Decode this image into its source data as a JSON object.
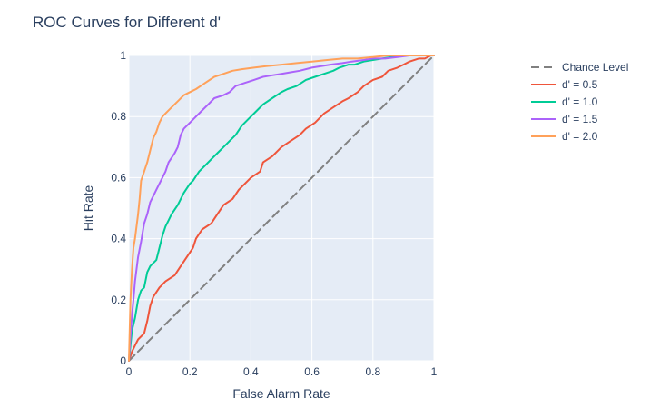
{
  "chart_data": {
    "type": "line",
    "title": "ROC Curves for Different d'",
    "xlabel": "False Alarm Rate",
    "ylabel": "Hit Rate",
    "xlim": [
      0,
      1
    ],
    "ylim": [
      0,
      1
    ],
    "x_ticks": [
      "0",
      "0.2",
      "0.4",
      "0.6",
      "0.8",
      "1"
    ],
    "y_ticks": [
      "0",
      "0.2",
      "0.4",
      "0.6",
      "0.8",
      "1"
    ],
    "grid": true,
    "legend_position": "top-right",
    "series": [
      {
        "name": "Chance Level",
        "color": "#808080",
        "dash": "dash",
        "x": [
          0,
          1
        ],
        "y": [
          0,
          1
        ]
      },
      {
        "name": "d' = 0.5",
        "color": "#EF553B",
        "x": [
          0,
          0.01,
          0.02,
          0.03,
          0.05,
          0.06,
          0.07,
          0.08,
          0.1,
          0.12,
          0.15,
          0.17,
          0.19,
          0.21,
          0.22,
          0.24,
          0.27,
          0.29,
          0.31,
          0.34,
          0.36,
          0.4,
          0.43,
          0.44,
          0.47,
          0.5,
          0.53,
          0.56,
          0.58,
          0.61,
          0.64,
          0.67,
          0.7,
          0.72,
          0.75,
          0.77,
          0.8,
          0.83,
          0.85,
          0.88,
          0.9,
          0.92,
          0.95,
          0.97,
          0.99,
          1.0
        ],
        "y": [
          0,
          0.03,
          0.05,
          0.07,
          0.09,
          0.13,
          0.18,
          0.21,
          0.24,
          0.26,
          0.28,
          0.31,
          0.34,
          0.37,
          0.4,
          0.43,
          0.45,
          0.48,
          0.51,
          0.53,
          0.56,
          0.6,
          0.62,
          0.65,
          0.67,
          0.7,
          0.72,
          0.74,
          0.76,
          0.78,
          0.81,
          0.83,
          0.85,
          0.86,
          0.88,
          0.9,
          0.92,
          0.93,
          0.95,
          0.96,
          0.97,
          0.98,
          0.99,
          0.99,
          1.0,
          1.0
        ]
      },
      {
        "name": "d' = 1.0",
        "color": "#00CC96",
        "x": [
          0,
          0.005,
          0.01,
          0.02,
          0.03,
          0.04,
          0.05,
          0.06,
          0.07,
          0.09,
          0.1,
          0.11,
          0.12,
          0.13,
          0.14,
          0.16,
          0.18,
          0.2,
          0.21,
          0.23,
          0.25,
          0.27,
          0.29,
          0.31,
          0.33,
          0.35,
          0.37,
          0.39,
          0.42,
          0.44,
          0.47,
          0.5,
          0.52,
          0.55,
          0.58,
          0.61,
          0.64,
          0.67,
          0.69,
          0.72,
          0.74,
          0.77,
          0.8,
          0.83,
          0.86,
          0.88,
          0.91,
          0.94,
          0.97,
          1.0
        ],
        "y": [
          0,
          0.05,
          0.1,
          0.14,
          0.2,
          0.23,
          0.24,
          0.29,
          0.31,
          0.33,
          0.37,
          0.41,
          0.44,
          0.46,
          0.48,
          0.51,
          0.55,
          0.58,
          0.59,
          0.62,
          0.64,
          0.66,
          0.68,
          0.7,
          0.72,
          0.74,
          0.77,
          0.79,
          0.82,
          0.84,
          0.86,
          0.88,
          0.89,
          0.9,
          0.92,
          0.93,
          0.94,
          0.95,
          0.96,
          0.97,
          0.97,
          0.98,
          0.985,
          0.99,
          0.995,
          1.0,
          1.0,
          1.0,
          1.0,
          1.0
        ]
      },
      {
        "name": "d' = 1.5",
        "color": "#AB63FA",
        "x": [
          0,
          0.005,
          0.01,
          0.015,
          0.02,
          0.025,
          0.03,
          0.04,
          0.05,
          0.06,
          0.07,
          0.08,
          0.09,
          0.1,
          0.12,
          0.13,
          0.15,
          0.16,
          0.17,
          0.18,
          0.2,
          0.22,
          0.24,
          0.26,
          0.28,
          0.31,
          0.33,
          0.35,
          0.38,
          0.41,
          0.44,
          0.47,
          0.5,
          0.53,
          0.56,
          0.6,
          0.63,
          0.66,
          0.7,
          0.73,
          0.77,
          0.8,
          0.84,
          0.88,
          0.92,
          0.96,
          1.0
        ],
        "y": [
          0,
          0.08,
          0.15,
          0.2,
          0.26,
          0.3,
          0.34,
          0.39,
          0.45,
          0.48,
          0.52,
          0.54,
          0.56,
          0.58,
          0.62,
          0.65,
          0.68,
          0.7,
          0.74,
          0.76,
          0.78,
          0.8,
          0.82,
          0.84,
          0.86,
          0.87,
          0.88,
          0.9,
          0.91,
          0.92,
          0.93,
          0.935,
          0.94,
          0.945,
          0.95,
          0.96,
          0.965,
          0.97,
          0.975,
          0.98,
          0.985,
          0.99,
          0.99,
          0.995,
          1.0,
          1.0,
          1.0
        ]
      },
      {
        "name": "d' = 2.0",
        "color": "#FFA15A",
        "x": [
          0,
          0.005,
          0.01,
          0.015,
          0.02,
          0.03,
          0.035,
          0.04,
          0.05,
          0.06,
          0.07,
          0.08,
          0.09,
          0.1,
          0.11,
          0.12,
          0.14,
          0.16,
          0.18,
          0.2,
          0.22,
          0.25,
          0.28,
          0.31,
          0.34,
          0.37,
          0.41,
          0.45,
          0.5,
          0.55,
          0.6,
          0.65,
          0.7,
          0.75,
          0.8,
          0.85,
          0.9,
          0.95,
          1.0
        ],
        "y": [
          0,
          0.2,
          0.3,
          0.37,
          0.4,
          0.48,
          0.53,
          0.59,
          0.62,
          0.65,
          0.69,
          0.73,
          0.75,
          0.78,
          0.8,
          0.81,
          0.83,
          0.85,
          0.87,
          0.88,
          0.89,
          0.91,
          0.93,
          0.94,
          0.95,
          0.955,
          0.96,
          0.965,
          0.97,
          0.975,
          0.98,
          0.985,
          0.99,
          0.99,
          0.995,
          1.0,
          1.0,
          1.0,
          1.0
        ]
      }
    ]
  }
}
